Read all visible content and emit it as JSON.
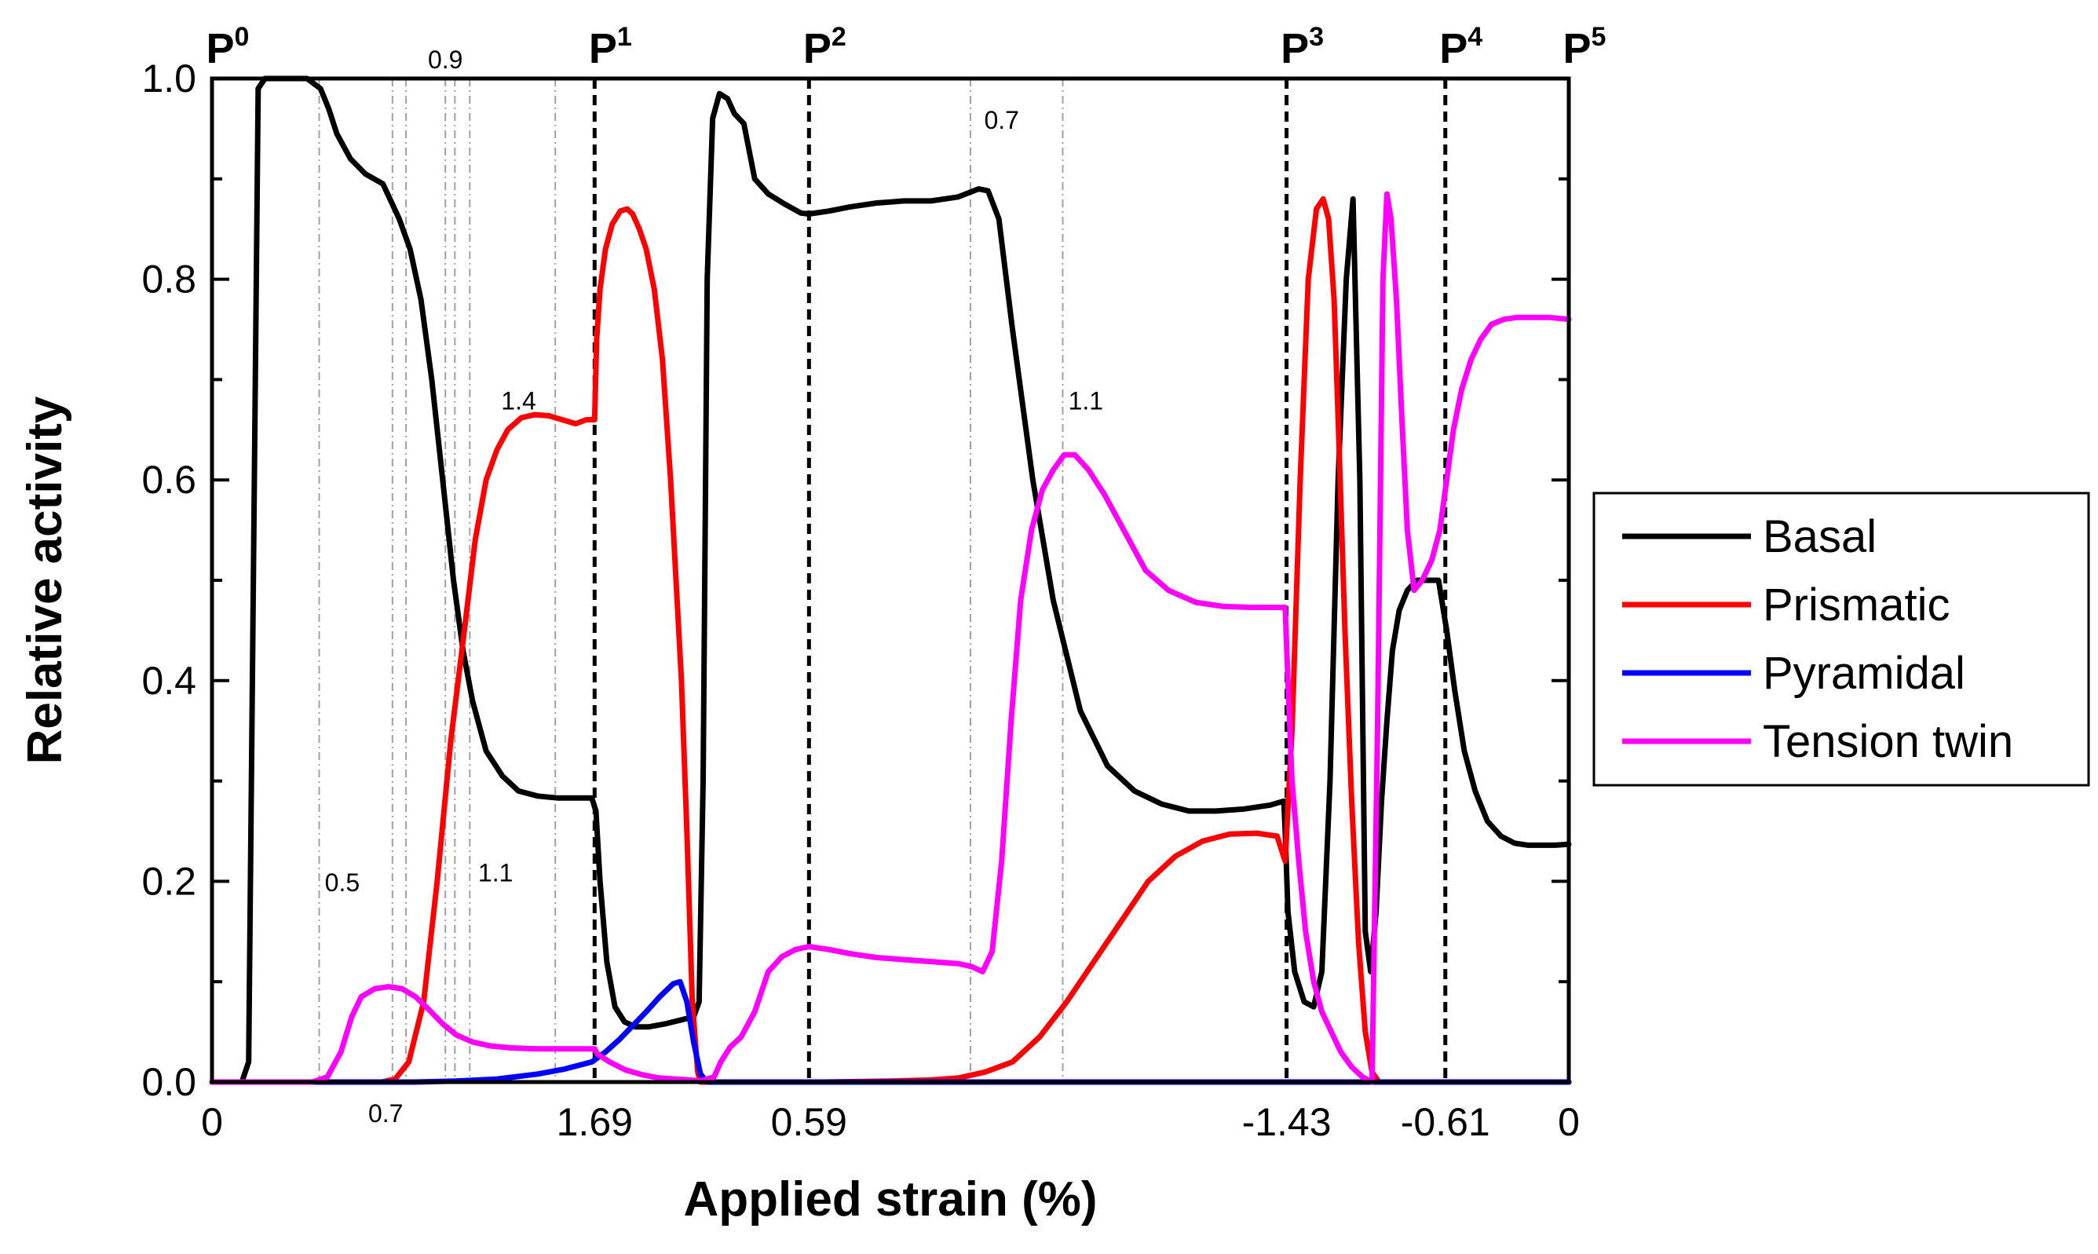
{
  "chart_data": {
    "type": "line",
    "xlabel": "Applied strain (%)",
    "ylabel": "Relative activity",
    "ylim": [
      0,
      1
    ],
    "y_ticks": [
      "0.0",
      "0.2",
      "0.4",
      "0.6",
      "0.8",
      "1.0"
    ],
    "x_ticks": [
      "0",
      "1.69",
      "0.59",
      "-1.43",
      "-0.61",
      "0"
    ],
    "x_note": "Cyclic loading path P0→P5; x is a normalized path position (0–100) along the load path; tick labels give applied strain (%) at points",
    "x_tick_positions": [
      0,
      28.2,
      44,
      79.2,
      90.9,
      100
    ],
    "phases": [
      {
        "base": "P",
        "sup": "0",
        "x": 0
      },
      {
        "base": "P",
        "sup": "1",
        "x": 28.2
      },
      {
        "base": "P",
        "sup": "2",
        "x": 44
      },
      {
        "base": "P",
        "sup": "3",
        "x": 79.2
      },
      {
        "base": "P",
        "sup": "4",
        "x": 90.9
      },
      {
        "base": "P",
        "sup": "5",
        "x": 100
      }
    ],
    "phase_lines_at": [
      28.2,
      44,
      79.2,
      90.9
    ],
    "guide_lines_at": [
      7.9,
      13.3,
      14.3,
      17.2,
      17.9,
      19.0,
      25.3,
      55.9,
      62.7
    ],
    "annotations": [
      {
        "text": "0.5",
        "x": 9.6,
        "y": 0.19
      },
      {
        "text": "0.7",
        "x": 12.8,
        "y": -0.04
      },
      {
        "text": "0.9",
        "x": 17.2,
        "y": 1.01
      },
      {
        "text": "1.1",
        "x": 20.9,
        "y": 0.2
      },
      {
        "text": "1.4",
        "x": 22.6,
        "y": 0.67
      },
      {
        "text": "0.7",
        "x": 58.2,
        "y": 0.95
      },
      {
        "text": "1.1",
        "x": 64.4,
        "y": 0.67
      }
    ],
    "legend_position": "right",
    "series": [
      {
        "name": "Basal",
        "color": "#000000",
        "x": [
          0,
          2.2,
          2.7,
          3.4,
          3.9,
          4.3,
          4.8,
          5.2,
          6,
          7,
          8,
          8.6,
          9.2,
          10.2,
          11.3,
          12.6,
          13.8,
          14.6,
          15.4,
          16.2,
          17,
          17.8,
          18.5,
          19.2,
          20.2,
          21.4,
          22.6,
          24,
          25.5,
          26.9,
          28.0,
          28.3,
          28.6,
          29.1,
          29.7,
          30.4,
          31.2,
          32.2,
          33.4,
          34.6,
          35.5,
          35.9,
          36.2,
          36.5,
          36.9,
          37.4,
          38.0,
          38.5,
          39.2,
          40.0,
          41.0,
          42.2,
          43.4,
          44.0,
          45.5,
          47,
          49,
          51,
          53,
          55,
          56.5,
          57.2,
          58.0,
          59,
          60.5,
          62,
          64,
          66,
          68,
          70,
          72,
          74,
          76,
          78,
          79.0,
          79.1,
          79.3,
          79.8,
          80.5,
          81.2,
          81.8,
          82.4,
          83.0,
          83.6,
          84.1,
          84.6,
          85.0,
          85.4,
          85.8,
          86.2,
          86.6,
          87.0,
          87.5,
          88.1,
          88.8,
          89.6,
          90.4,
          91.0,
          91.6,
          92.3,
          93.1,
          94.0,
          95.0,
          96.0,
          97.0,
          98.0,
          99.0,
          100
        ],
        "y": [
          0,
          0,
          0.02,
          0.99,
          1.0,
          1.0,
          1.0,
          1.0,
          1.0,
          1.0,
          0.99,
          0.97,
          0.945,
          0.92,
          0.905,
          0.895,
          0.86,
          0.83,
          0.78,
          0.7,
          0.6,
          0.5,
          0.43,
          0.38,
          0.33,
          0.305,
          0.29,
          0.285,
          0.283,
          0.283,
          0.283,
          0.27,
          0.2,
          0.12,
          0.075,
          0.06,
          0.055,
          0.055,
          0.058,
          0.062,
          0.065,
          0.08,
          0.3,
          0.8,
          0.96,
          0.985,
          0.98,
          0.965,
          0.955,
          0.9,
          0.885,
          0.875,
          0.866,
          0.865,
          0.868,
          0.872,
          0.876,
          0.878,
          0.878,
          0.882,
          0.89,
          0.888,
          0.86,
          0.75,
          0.6,
          0.48,
          0.37,
          0.315,
          0.29,
          0.277,
          0.27,
          0.27,
          0.272,
          0.276,
          0.28,
          0.25,
          0.17,
          0.11,
          0.08,
          0.075,
          0.11,
          0.3,
          0.6,
          0.8,
          0.88,
          0.6,
          0.15,
          0.11,
          0.17,
          0.28,
          0.36,
          0.43,
          0.47,
          0.49,
          0.5,
          0.5,
          0.5,
          0.45,
          0.39,
          0.33,
          0.29,
          0.26,
          0.245,
          0.238,
          0.236,
          0.236,
          0.236,
          0.237
        ]
      },
      {
        "name": "Prismatic",
        "color": "#ff0000",
        "x": [
          0,
          10,
          12.5,
          13.5,
          14.5,
          15.6,
          16.6,
          17.6,
          18.6,
          19.4,
          20.2,
          21.0,
          21.8,
          22.8,
          23.8,
          24.8,
          25.8,
          26.8,
          27.6,
          28.2,
          28.35,
          28.6,
          29.0,
          29.5,
          30.1,
          30.6,
          31.0,
          31.5,
          32.0,
          32.6,
          33.2,
          33.8,
          34.2,
          34.6,
          35.0,
          35.4,
          35.8,
          36.0,
          37,
          45,
          50,
          53,
          55,
          57,
          59,
          61,
          63,
          65,
          67,
          69,
          71,
          73,
          75,
          77,
          78.5,
          79.1,
          79.6,
          80.2,
          80.8,
          81.4,
          81.9,
          82.3,
          82.7,
          83.1,
          83.5,
          84.0,
          84.5,
          85.0,
          85.5,
          86.0,
          87,
          90,
          100
        ],
        "y": [
          0,
          0,
          0.0,
          0.003,
          0.02,
          0.08,
          0.2,
          0.34,
          0.45,
          0.54,
          0.6,
          0.63,
          0.65,
          0.662,
          0.665,
          0.664,
          0.66,
          0.656,
          0.66,
          0.66,
          0.74,
          0.79,
          0.83,
          0.855,
          0.868,
          0.87,
          0.865,
          0.85,
          0.83,
          0.79,
          0.72,
          0.6,
          0.5,
          0.4,
          0.25,
          0.08,
          0.01,
          0,
          0,
          0,
          0.001,
          0.002,
          0.004,
          0.01,
          0.02,
          0.045,
          0.08,
          0.12,
          0.16,
          0.2,
          0.225,
          0.24,
          0.247,
          0.248,
          0.245,
          0.22,
          0.35,
          0.6,
          0.8,
          0.87,
          0.88,
          0.86,
          0.78,
          0.62,
          0.45,
          0.28,
          0.14,
          0.05,
          0.01,
          0,
          0,
          0,
          0
        ]
      },
      {
        "name": "Pyramidal",
        "color": "#0000ff",
        "x": [
          0,
          15,
          18,
          21,
          24,
          26,
          28,
          29,
          30,
          31,
          32,
          33,
          34,
          34.5,
          35.0,
          35.5,
          36.0,
          36.5,
          40,
          50,
          60,
          70,
          80,
          90,
          100
        ],
        "y": [
          0,
          0,
          0.001,
          0.003,
          0.008,
          0.013,
          0.02,
          0.03,
          0.042,
          0.056,
          0.07,
          0.085,
          0.098,
          0.1,
          0.08,
          0.04,
          0.008,
          0.0,
          0,
          0,
          0,
          0,
          0,
          0,
          0
        ]
      },
      {
        "name": "Tension twin",
        "color": "#ff00ff",
        "x": [
          0,
          7.4,
          8.5,
          9.5,
          10.3,
          11.0,
          12.0,
          13.0,
          14.0,
          15.0,
          16.0,
          17.0,
          18.0,
          19.2,
          20.5,
          22.0,
          24.0,
          26.0,
          28.2,
          28.4,
          29.3,
          30.5,
          31.8,
          33.0,
          34.2,
          35.2,
          36.0,
          37.0,
          37.5,
          38.2,
          39.0,
          40.0,
          41.0,
          42.0,
          43.0,
          44.0,
          45.5,
          47.0,
          49.0,
          51.0,
          53.0,
          55.0,
          56.0,
          56.8,
          57.5,
          58.2,
          58.9,
          59.6,
          60.4,
          61.2,
          62.0,
          62.8,
          63.6,
          64.6,
          65.8,
          67.2,
          68.8,
          70.5,
          72.5,
          74.5,
          76.5,
          78.5,
          79.1,
          79.3,
          79.6,
          80.1,
          80.6,
          81.2,
          81.8,
          82.5,
          83.2,
          84.0,
          84.8,
          85.5,
          85.9,
          86.3,
          86.6,
          86.9,
          87.3,
          87.7,
          88.1,
          88.6,
          89.2,
          89.9,
          90.5,
          91.0,
          91.5,
          92.1,
          92.8,
          93.5,
          94.3,
          95.2,
          96.2,
          97.3,
          98.5,
          100
        ],
        "y": [
          0,
          0,
          0.005,
          0.03,
          0.065,
          0.085,
          0.093,
          0.095,
          0.093,
          0.085,
          0.072,
          0.058,
          0.047,
          0.04,
          0.036,
          0.034,
          0.033,
          0.033,
          0.033,
          0.028,
          0.02,
          0.012,
          0.007,
          0.004,
          0.003,
          0.002,
          0.001,
          0.005,
          0.02,
          0.035,
          0.045,
          0.07,
          0.11,
          0.125,
          0.132,
          0.135,
          0.132,
          0.128,
          0.124,
          0.122,
          0.12,
          0.118,
          0.115,
          0.11,
          0.13,
          0.22,
          0.36,
          0.48,
          0.55,
          0.59,
          0.61,
          0.625,
          0.625,
          0.61,
          0.585,
          0.55,
          0.51,
          0.49,
          0.478,
          0.474,
          0.473,
          0.473,
          0.473,
          0.4,
          0.3,
          0.22,
          0.15,
          0.1,
          0.07,
          0.05,
          0.03,
          0.015,
          0.005,
          0.0,
          0.35,
          0.8,
          0.885,
          0.86,
          0.78,
          0.66,
          0.55,
          0.49,
          0.5,
          0.52,
          0.55,
          0.6,
          0.65,
          0.69,
          0.72,
          0.74,
          0.755,
          0.76,
          0.762,
          0.762,
          0.762,
          0.76
        ]
      }
    ]
  }
}
